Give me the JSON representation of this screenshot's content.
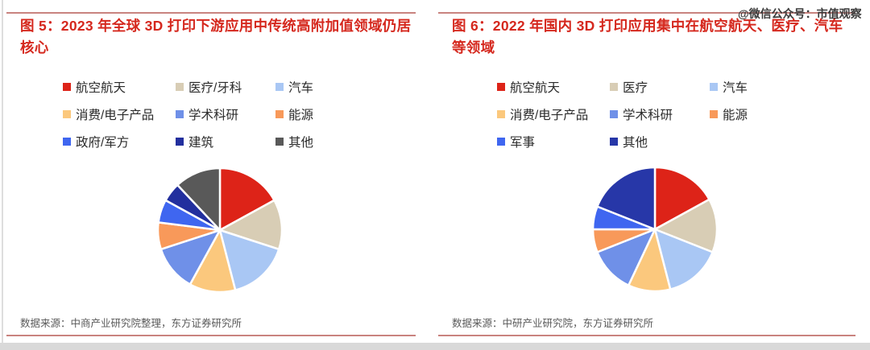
{
  "watermark": "@微信公众号：市值观察",
  "colors": {
    "accent_red": "#d5281e",
    "rule_red": "#c9837f",
    "legend_text": "#2b2b2b",
    "source_text": "#595959",
    "page_strip": "#d9d9d9"
  },
  "panels": [
    {
      "title": "图 5：2023 年全球 3D 打印下游应用中传统高附加值领域仍居\n核心",
      "source": "数据来源：中商产业研究院整理，东方证券研究所"
    },
    {
      "title": "图 6：2022 年国内 3D 打印应用集中在航空航天、医疗、汽车\n等领域",
      "source": "数据来源：中研产业研究院，东方证券研究所"
    }
  ],
  "chart_data": [
    {
      "type": "pie",
      "title": "2023 年全球 3D 打印下游应用结构",
      "labels": [
        "航空航天",
        "医疗/牙科",
        "汽车",
        "消费/电子产品",
        "学术科研",
        "能源",
        "政府/军方",
        "建筑",
        "其他"
      ],
      "values": [
        17,
        13,
        16,
        12,
        12,
        7,
        6,
        5,
        12
      ],
      "unit": "%",
      "colors": [
        "#dd2318",
        "#d8cdb5",
        "#a9c7f4",
        "#fbc87d",
        "#6f90e8",
        "#f8995a",
        "#3f66f0",
        "#222f9e",
        "#595959"
      ],
      "start_angle_deg": 0,
      "direction": "clockwise",
      "legend_position": "top",
      "data_labels": false,
      "note": "values estimated from slice angles; no numeric labels shown in figure"
    },
    {
      "type": "pie",
      "title": "2022 年国内 3D 打印应用结构",
      "labels": [
        "航空航天",
        "医疗",
        "汽车",
        "消费/电子产品",
        "学术科研",
        "能源",
        "军事",
        "其他"
      ],
      "values": [
        17,
        14,
        15,
        11,
        12,
        6,
        6,
        19
      ],
      "unit": "%",
      "colors": [
        "#dd2318",
        "#d8cdb5",
        "#a9c7f4",
        "#fbc87d",
        "#6f90e8",
        "#f8995a",
        "#3f66f0",
        "#2737a8"
      ],
      "start_angle_deg": 0,
      "direction": "clockwise",
      "legend_position": "top",
      "data_labels": false,
      "note": "values estimated from slice angles; no numeric labels shown in figure"
    }
  ]
}
